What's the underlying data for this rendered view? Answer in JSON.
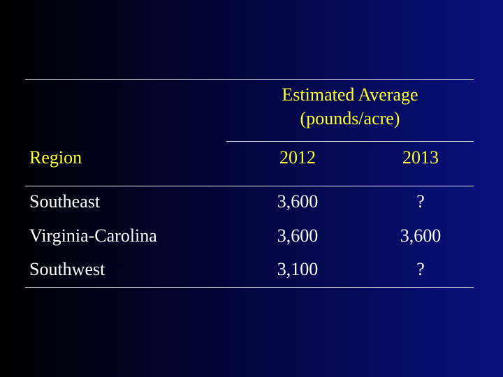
{
  "table": {
    "group_header_line1": "Estimated Average",
    "group_header_line2": "(pounds/acre)",
    "region_header": "Region",
    "years": [
      "2012",
      "2013"
    ],
    "rows": [
      {
        "region": "Southeast",
        "v2012": "3,600",
        "v2013": "?"
      },
      {
        "region": "Virginia-Carolina",
        "v2012": "3,600",
        "v2013": "3,600"
      },
      {
        "region": "Southwest",
        "v2012": "3,100",
        "v2013": "?"
      }
    ],
    "colors": {
      "header": "#ffff33",
      "body": "#ffffff",
      "rule": "#e8e8f0"
    }
  }
}
